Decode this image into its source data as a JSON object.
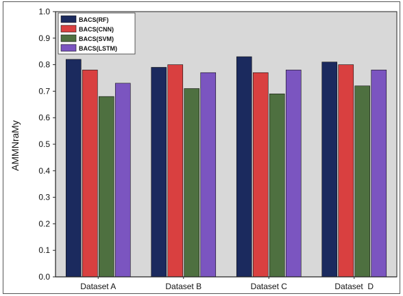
{
  "chart_data": {
    "type": "bar",
    "title": "",
    "xlabel": "",
    "ylabel": "AMMNraMy",
    "categories": [
      "Dataset A",
      "Dataset B",
      "Dataset C",
      "Dataset  D"
    ],
    "series": [
      {
        "name": "BACS(RF)",
        "color": "#1b2a5e",
        "values": [
          0.82,
          0.79,
          0.83,
          0.81
        ]
      },
      {
        "name": "BACS(CNN)",
        "color": "#d94040",
        "values": [
          0.78,
          0.8,
          0.77,
          0.8
        ]
      },
      {
        "name": "BACS(SVM)",
        "color": "#4e7040",
        "values": [
          0.68,
          0.71,
          0.69,
          0.72
        ]
      },
      {
        "name": "BACS(LSTM)",
        "color": "#7b55c0",
        "values": [
          0.73,
          0.77,
          0.78,
          0.78
        ]
      }
    ],
    "ylim": [
      0.0,
      1.0
    ],
    "yticks": [
      "0.0",
      "0.1",
      "0.2",
      "0.3",
      "0.4",
      "0.5",
      "0.6",
      "0.7",
      "0.8",
      "0.9",
      "1.0"
    ],
    "grid": false,
    "legend_position": "top-left",
    "plot_background": "#d8d8d8"
  }
}
